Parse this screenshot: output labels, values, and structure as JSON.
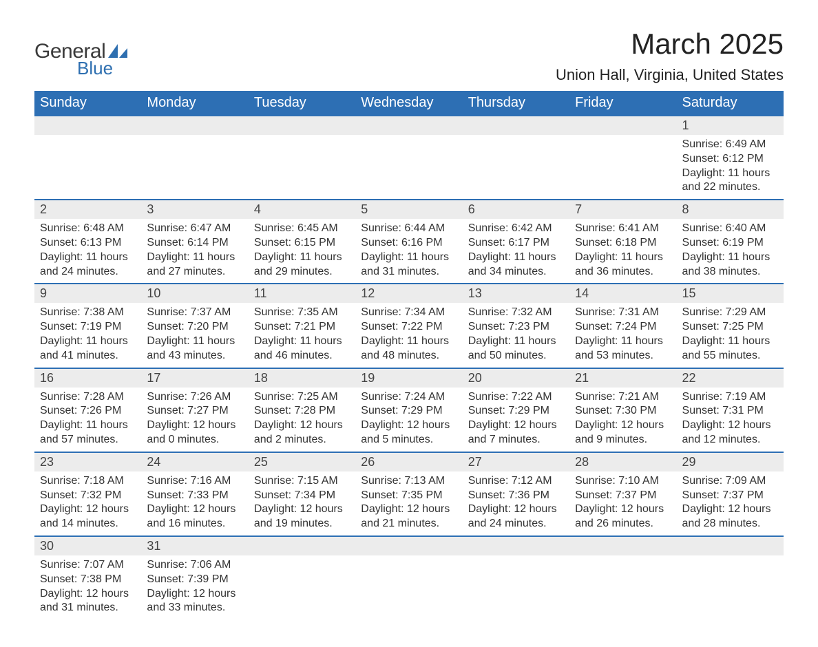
{
  "logo": {
    "word1": "General",
    "word2": "Blue",
    "glyph_color": "#2e6fb0"
  },
  "header": {
    "month_title": "March 2025",
    "location": "Union Hall, Virginia, United States"
  },
  "colors": {
    "header_bg": "#2d6fb4",
    "header_fg": "#ffffff",
    "row_stripe": "#ececec",
    "rule": "#2d6fb4",
    "text": "#333333"
  },
  "calendar": {
    "day_labels": [
      "Sunday",
      "Monday",
      "Tuesday",
      "Wednesday",
      "Thursday",
      "Friday",
      "Saturday"
    ],
    "weeks": [
      [
        null,
        null,
        null,
        null,
        null,
        null,
        {
          "n": "1",
          "sunrise": "Sunrise: 6:49 AM",
          "sunset": "Sunset: 6:12 PM",
          "daylight": "Daylight: 11 hours and 22 minutes."
        }
      ],
      [
        {
          "n": "2",
          "sunrise": "Sunrise: 6:48 AM",
          "sunset": "Sunset: 6:13 PM",
          "daylight": "Daylight: 11 hours and 24 minutes."
        },
        {
          "n": "3",
          "sunrise": "Sunrise: 6:47 AM",
          "sunset": "Sunset: 6:14 PM",
          "daylight": "Daylight: 11 hours and 27 minutes."
        },
        {
          "n": "4",
          "sunrise": "Sunrise: 6:45 AM",
          "sunset": "Sunset: 6:15 PM",
          "daylight": "Daylight: 11 hours and 29 minutes."
        },
        {
          "n": "5",
          "sunrise": "Sunrise: 6:44 AM",
          "sunset": "Sunset: 6:16 PM",
          "daylight": "Daylight: 11 hours and 31 minutes."
        },
        {
          "n": "6",
          "sunrise": "Sunrise: 6:42 AM",
          "sunset": "Sunset: 6:17 PM",
          "daylight": "Daylight: 11 hours and 34 minutes."
        },
        {
          "n": "7",
          "sunrise": "Sunrise: 6:41 AM",
          "sunset": "Sunset: 6:18 PM",
          "daylight": "Daylight: 11 hours and 36 minutes."
        },
        {
          "n": "8",
          "sunrise": "Sunrise: 6:40 AM",
          "sunset": "Sunset: 6:19 PM",
          "daylight": "Daylight: 11 hours and 38 minutes."
        }
      ],
      [
        {
          "n": "9",
          "sunrise": "Sunrise: 7:38 AM",
          "sunset": "Sunset: 7:19 PM",
          "daylight": "Daylight: 11 hours and 41 minutes."
        },
        {
          "n": "10",
          "sunrise": "Sunrise: 7:37 AM",
          "sunset": "Sunset: 7:20 PM",
          "daylight": "Daylight: 11 hours and 43 minutes."
        },
        {
          "n": "11",
          "sunrise": "Sunrise: 7:35 AM",
          "sunset": "Sunset: 7:21 PM",
          "daylight": "Daylight: 11 hours and 46 minutes."
        },
        {
          "n": "12",
          "sunrise": "Sunrise: 7:34 AM",
          "sunset": "Sunset: 7:22 PM",
          "daylight": "Daylight: 11 hours and 48 minutes."
        },
        {
          "n": "13",
          "sunrise": "Sunrise: 7:32 AM",
          "sunset": "Sunset: 7:23 PM",
          "daylight": "Daylight: 11 hours and 50 minutes."
        },
        {
          "n": "14",
          "sunrise": "Sunrise: 7:31 AM",
          "sunset": "Sunset: 7:24 PM",
          "daylight": "Daylight: 11 hours and 53 minutes."
        },
        {
          "n": "15",
          "sunrise": "Sunrise: 7:29 AM",
          "sunset": "Sunset: 7:25 PM",
          "daylight": "Daylight: 11 hours and 55 minutes."
        }
      ],
      [
        {
          "n": "16",
          "sunrise": "Sunrise: 7:28 AM",
          "sunset": "Sunset: 7:26 PM",
          "daylight": "Daylight: 11 hours and 57 minutes."
        },
        {
          "n": "17",
          "sunrise": "Sunrise: 7:26 AM",
          "sunset": "Sunset: 7:27 PM",
          "daylight": "Daylight: 12 hours and 0 minutes."
        },
        {
          "n": "18",
          "sunrise": "Sunrise: 7:25 AM",
          "sunset": "Sunset: 7:28 PM",
          "daylight": "Daylight: 12 hours and 2 minutes."
        },
        {
          "n": "19",
          "sunrise": "Sunrise: 7:24 AM",
          "sunset": "Sunset: 7:29 PM",
          "daylight": "Daylight: 12 hours and 5 minutes."
        },
        {
          "n": "20",
          "sunrise": "Sunrise: 7:22 AM",
          "sunset": "Sunset: 7:29 PM",
          "daylight": "Daylight: 12 hours and 7 minutes."
        },
        {
          "n": "21",
          "sunrise": "Sunrise: 7:21 AM",
          "sunset": "Sunset: 7:30 PM",
          "daylight": "Daylight: 12 hours and 9 minutes."
        },
        {
          "n": "22",
          "sunrise": "Sunrise: 7:19 AM",
          "sunset": "Sunset: 7:31 PM",
          "daylight": "Daylight: 12 hours and 12 minutes."
        }
      ],
      [
        {
          "n": "23",
          "sunrise": "Sunrise: 7:18 AM",
          "sunset": "Sunset: 7:32 PM",
          "daylight": "Daylight: 12 hours and 14 minutes."
        },
        {
          "n": "24",
          "sunrise": "Sunrise: 7:16 AM",
          "sunset": "Sunset: 7:33 PM",
          "daylight": "Daylight: 12 hours and 16 minutes."
        },
        {
          "n": "25",
          "sunrise": "Sunrise: 7:15 AM",
          "sunset": "Sunset: 7:34 PM",
          "daylight": "Daylight: 12 hours and 19 minutes."
        },
        {
          "n": "26",
          "sunrise": "Sunrise: 7:13 AM",
          "sunset": "Sunset: 7:35 PM",
          "daylight": "Daylight: 12 hours and 21 minutes."
        },
        {
          "n": "27",
          "sunrise": "Sunrise: 7:12 AM",
          "sunset": "Sunset: 7:36 PM",
          "daylight": "Daylight: 12 hours and 24 minutes."
        },
        {
          "n": "28",
          "sunrise": "Sunrise: 7:10 AM",
          "sunset": "Sunset: 7:37 PM",
          "daylight": "Daylight: 12 hours and 26 minutes."
        },
        {
          "n": "29",
          "sunrise": "Sunrise: 7:09 AM",
          "sunset": "Sunset: 7:37 PM",
          "daylight": "Daylight: 12 hours and 28 minutes."
        }
      ],
      [
        {
          "n": "30",
          "sunrise": "Sunrise: 7:07 AM",
          "sunset": "Sunset: 7:38 PM",
          "daylight": "Daylight: 12 hours and 31 minutes."
        },
        {
          "n": "31",
          "sunrise": "Sunrise: 7:06 AM",
          "sunset": "Sunset: 7:39 PM",
          "daylight": "Daylight: 12 hours and 33 minutes."
        },
        null,
        null,
        null,
        null,
        null
      ]
    ]
  }
}
